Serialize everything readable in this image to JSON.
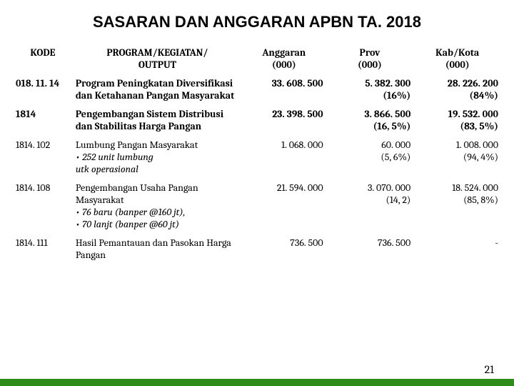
{
  "title": "SASARAN DAN ANGGARAN APBN TA. 2018",
  "header": {
    "kode": "KODE",
    "program": "PROGRAM/KEGIATAN/\nOUTPUT",
    "anggaran": "Anggaran\n(000)",
    "prov": "Prov\n(000)",
    "kab": "Kab/Kota\n(000)"
  },
  "rows": [
    {
      "kode": "018. 11. 14",
      "desc": "Program Peningkatan Diversifikasi dan Ketahanan Pangan Masyarakat",
      "anggaran": "33. 608. 500",
      "prov": "5. 382. 300",
      "prov_pct": "(16%)",
      "kab": "28. 226. 200",
      "kab_pct": "(84%)",
      "bold": true
    },
    {
      "kode": "1814",
      "desc": "Pengembangan Sistem Distribusi dan Stabilitas Harga Pangan",
      "anggaran": "23. 398. 500",
      "prov": "3. 866. 500",
      "prov_pct": "(16, 5%)",
      "kab": "19. 532. 000",
      "kab_pct": "(83, 5%)",
      "bold": true,
      "section": true
    },
    {
      "kode": "1814. 102",
      "desc": "Lumbung Pangan Masyarakat",
      "desc_sub": [
        "• 252 unit lumbung",
        "utk operasional"
      ],
      "anggaran": "1. 068. 000",
      "prov": "60. 000",
      "prov_pct": "(5, 6%)",
      "kab": "1. 008. 000",
      "kab_pct": "(94, 4%)"
    },
    {
      "kode": "1814. 108",
      "desc": "Pengembangan Usaha Pangan Masyarakat",
      "desc_sub": [
        "• 76 baru (banper  @160 jt),",
        "• 70 lanjt (banper @60 jt)"
      ],
      "anggaran": "21. 594. 000",
      "prov": "3. 070. 000",
      "prov_pct": "(14, 2)",
      "kab": "18. 524. 000",
      "kab_pct": "(85, 8%)",
      "section": true
    },
    {
      "kode": "1814. 111",
      "desc": "Hasil Pemantauan dan Pasokan Harga Pangan",
      "anggaran": "736. 500",
      "prov": "736. 500",
      "kab": "-",
      "section": true
    }
  ],
  "page_number": "21",
  "style": {
    "accent_color": "#2e8b1a"
  }
}
